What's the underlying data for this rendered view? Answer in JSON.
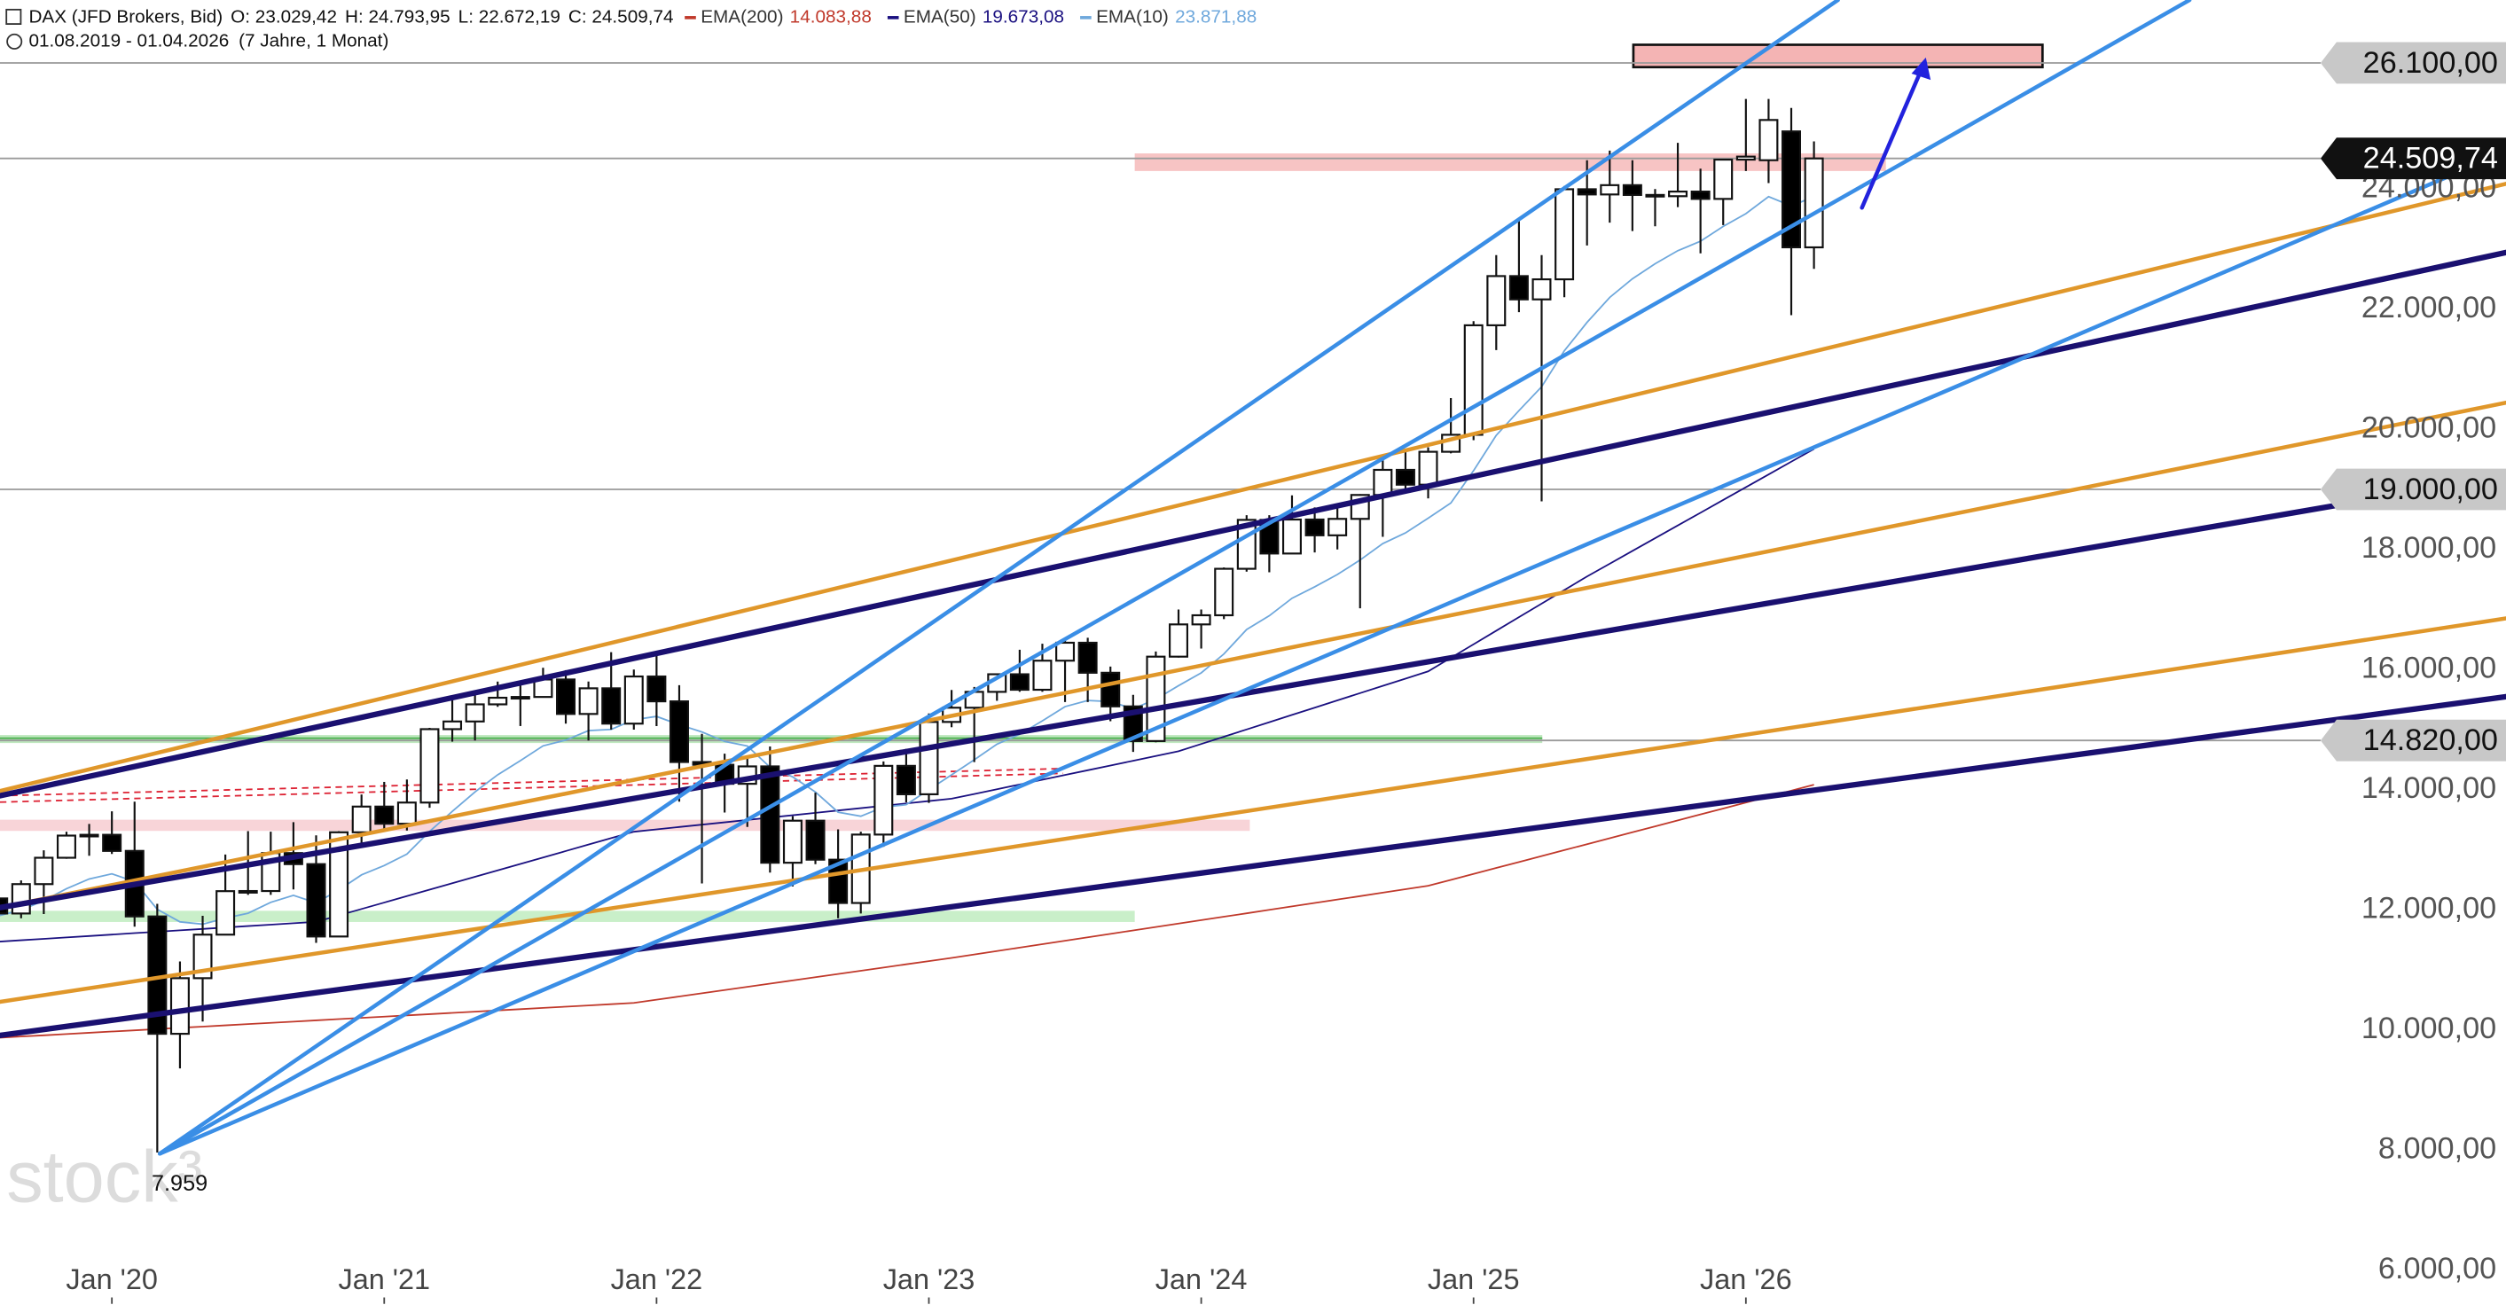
{
  "chart_data": {
    "type": "candlestick",
    "title": "DAX (JFD Brokers, Bid)",
    "ohlc_labels": [
      "O: 23.029,42",
      "H: 24.793,95",
      "L: 22.672,19",
      "C: 24.509,74"
    ],
    "date_range": "01.08.2019 - 01.04.2026",
    "period": "(7 Jahre, 1 Monat)",
    "watermark": "stock³",
    "categories": [
      null,
      null,
      null,
      null,
      null,
      "Jan '20",
      null,
      null,
      null,
      null,
      null,
      null,
      null,
      null,
      null,
      null,
      null,
      "Jan '21",
      null,
      null,
      null,
      null,
      null,
      null,
      null,
      null,
      null,
      null,
      null,
      "Jan '22",
      null,
      null,
      null,
      null,
      null,
      null,
      null,
      null,
      null,
      null,
      null,
      "Jan '23",
      null,
      null,
      null,
      null,
      null,
      null,
      null,
      null,
      null,
      null,
      null,
      "Jan '24",
      null,
      null,
      null,
      null,
      null,
      null,
      null,
      null,
      null,
      null,
      null,
      "Jan '25",
      null,
      null,
      null,
      null,
      null,
      null,
      null,
      null,
      null,
      null,
      null,
      "Jan '26",
      null,
      null,
      null
    ],
    "candles": [
      [
        12190,
        12200,
        11270,
        11939
      ],
      [
        11939,
        12490,
        11860,
        12428
      ],
      [
        12428,
        12990,
        11930,
        12867
      ],
      [
        12867,
        13300,
        12850,
        13236
      ],
      [
        13236,
        13430,
        12900,
        13249
      ],
      [
        13249,
        13640,
        12930,
        12981
      ],
      [
        12981,
        13800,
        11720,
        11890
      ],
      [
        11890,
        12100,
        7959,
        9936
      ],
      [
        9936,
        11140,
        9360,
        10862
      ],
      [
        10862,
        11900,
        10140,
        11587
      ],
      [
        11587,
        12920,
        11580,
        12311
      ],
      [
        12311,
        13310,
        12250,
        12313
      ],
      [
        12313,
        13300,
        12250,
        12945
      ],
      [
        12945,
        13460,
        12340,
        12761
      ],
      [
        12761,
        13240,
        11450,
        11556
      ],
      [
        11556,
        13310,
        11580,
        13291
      ],
      [
        13291,
        13920,
        13060,
        13719
      ],
      [
        13719,
        14130,
        13310,
        13433
      ],
      [
        13433,
        14170,
        13320,
        13786
      ],
      [
        13786,
        15030,
        13700,
        15008
      ],
      [
        15008,
        15500,
        14800,
        15136
      ],
      [
        15136,
        15570,
        14820,
        15421
      ],
      [
        15421,
        15800,
        15380,
        15531
      ],
      [
        15531,
        15810,
        15060,
        15544
      ],
      [
        15544,
        16030,
        15540,
        15835
      ],
      [
        15835,
        15990,
        15100,
        15261
      ],
      [
        15261,
        15800,
        14820,
        15688
      ],
      [
        15688,
        16290,
        15000,
        15100
      ],
      [
        15100,
        16000,
        15000,
        15885
      ],
      [
        15885,
        16290,
        15060,
        15471
      ],
      [
        15471,
        15740,
        13800,
        14461
      ],
      [
        14461,
        14930,
        12440,
        14415
      ],
      [
        14415,
        14600,
        13620,
        14098
      ],
      [
        14098,
        14560,
        13380,
        14388
      ],
      [
        14388,
        14720,
        12620,
        12784
      ],
      [
        12784,
        13560,
        12390,
        13484
      ],
      [
        13484,
        13950,
        12760,
        12835
      ],
      [
        12835,
        13340,
        11860,
        12114
      ],
      [
        12114,
        13300,
        11940,
        13253
      ],
      [
        13253,
        14470,
        13050,
        14397
      ],
      [
        14397,
        14680,
        13790,
        13924
      ],
      [
        13924,
        15270,
        13780,
        15128
      ],
      [
        15128,
        15660,
        15040,
        15365
      ],
      [
        15365,
        15710,
        14460,
        15629
      ],
      [
        15629,
        15900,
        15480,
        15922
      ],
      [
        15922,
        16330,
        15630,
        15664
      ],
      [
        15664,
        16430,
        15630,
        16148
      ],
      [
        16148,
        16530,
        15460,
        16447
      ],
      [
        16447,
        16530,
        15460,
        15947
      ],
      [
        15947,
        16050,
        15140,
        15387
      ],
      [
        15387,
        15580,
        14630,
        14810
      ],
      [
        14810,
        16300,
        14790,
        16215
      ],
      [
        16215,
        17000,
        16200,
        16752
      ],
      [
        16752,
        17000,
        16350,
        16904
      ],
      [
        16904,
        17700,
        16840,
        17678
      ],
      [
        17678,
        18570,
        17630,
        18492
      ],
      [
        18492,
        18570,
        17620,
        17932
      ],
      [
        17932,
        18900,
        17930,
        18498
      ],
      [
        18498,
        18700,
        17950,
        18235
      ],
      [
        18235,
        18690,
        18000,
        18509
      ],
      [
        18509,
        18920,
        17020,
        18907
      ],
      [
        18907,
        19490,
        18210,
        19325
      ],
      [
        19325,
        19670,
        19000,
        19078
      ],
      [
        19078,
        19700,
        18850,
        19626
      ],
      [
        19626,
        20520,
        19600,
        19909
      ],
      [
        19909,
        21800,
        19820,
        21732
      ],
      [
        21732,
        22900,
        21320,
        22551
      ],
      [
        22551,
        23480,
        21950,
        22163
      ],
      [
        22163,
        22900,
        18800,
        22497
      ],
      [
        22497,
        24050,
        22200,
        23997
      ],
      [
        23997,
        24480,
        23060,
        23910
      ],
      [
        23910,
        24640,
        23440,
        24065
      ],
      [
        24065,
        24480,
        23300,
        23902
      ],
      [
        23902,
        24000,
        23380,
        23881
      ],
      [
        23881,
        24770,
        23700,
        23958
      ],
      [
        23958,
        24340,
        22930,
        23836
      ],
      [
        23836,
        24500,
        23400,
        24490
      ],
      [
        24490,
        25500,
        24300,
        24540
      ],
      [
        24480,
        25500,
        24100,
        25150
      ],
      [
        24960,
        25350,
        21900,
        23030
      ],
      [
        23029.42,
        24793.95,
        22672.19,
        24509.74
      ]
    ],
    "series": [
      {
        "name": "EMA(200)",
        "color": "#c0392b",
        "value_label": "14.083,88",
        "values": [
          9870,
          9891,
          9911,
          9932,
          9953,
          9974,
          9994,
          10015,
          10036,
          10056,
          10077,
          10098,
          10118,
          10139,
          10160,
          10181,
          10201,
          10222,
          10243,
          10263,
          10284,
          10305,
          10326,
          10346,
          10367,
          10388,
          10408,
          10429,
          10450,
          10504,
          10557,
          10611,
          10664,
          10718,
          10771,
          10825,
          10879,
          10932,
          10986,
          11039,
          11093,
          11146,
          11200,
          11257,
          11314,
          11371,
          11428,
          11486,
          11543,
          11600,
          11657,
          11714,
          11771,
          11828,
          11885,
          11942,
          12000,
          12057,
          12114,
          12171,
          12228,
          12286,
          12343,
          12400,
          12499,
          12598,
          12697,
          12796,
          12895,
          12994,
          13093,
          13192,
          13291,
          13390,
          13489,
          13588,
          13687,
          13786,
          13885,
          13984,
          14083.88
        ]
      },
      {
        "name": "EMA(50)",
        "color": "#1a1080",
        "value_label": "19.673,08",
        "values": [
          11470,
          11494,
          11517,
          11541,
          11564,
          11588,
          11612,
          11635,
          11659,
          11682,
          11706,
          11730,
          11753,
          11777,
          11800,
          11907,
          12014,
          12121,
          12229,
          12336,
          12443,
          12550,
          12657,
          12764,
          12871,
          12979,
          13086,
          13193,
          13300,
          13339,
          13379,
          13418,
          13457,
          13496,
          13536,
          13575,
          13614,
          13654,
          13693,
          13732,
          13771,
          13811,
          13850,
          13929,
          14008,
          14087,
          14166,
          14245,
          14324,
          14403,
          14482,
          14561,
          14640,
          14761,
          14882,
          15003,
          15124,
          15245,
          15366,
          15487,
          15608,
          15729,
          15849,
          15970,
          16196,
          16421,
          16647,
          16873,
          17098,
          17324,
          17550,
          17762,
          17975,
          18187,
          18399,
          18611,
          18824,
          19036,
          19248,
          19461,
          19673.08
        ]
      },
      {
        "name": "EMA(10)",
        "color": "#6fa8dc",
        "value_label": "23.871,88",
        "values": [
          11900,
          11995,
          12154,
          12351,
          12514,
          12599,
          12470,
          12009,
          11800,
          11761,
          11861,
          11943,
          12125,
          12241,
          12116,
          12330,
          12582,
          12737,
          12928,
          13306,
          13639,
          13963,
          14248,
          14484,
          14730,
          14826,
          14983,
          15004,
          15164,
          15220,
          15082,
          14961,
          14804,
          14728,
          14375,
          14213,
          13962,
          13626,
          13558,
          13711,
          13750,
          14000,
          14248,
          14499,
          14758,
          14923,
          15146,
          15383,
          15485,
          15467,
          15348,
          15506,
          15732,
          15945,
          16260,
          16666,
          16896,
          17187,
          17378,
          17583,
          17824,
          18097,
          18275,
          18521,
          18773,
          19311,
          19900,
          20311,
          20709,
          21307,
          21780,
          22196,
          22506,
          22756,
          22974,
          23131,
          23378,
          23590,
          23874,
          23720,
          23871.88
        ]
      }
    ],
    "ylim": [
      5440,
      27147
    ],
    "yticks": [
      {
        "value": 6000,
        "label": "6.000,00"
      },
      {
        "value": 8000,
        "label": "8.000,00"
      },
      {
        "value": 10000,
        "label": "10.000,00"
      },
      {
        "value": 12000,
        "label": "12.000,00"
      },
      {
        "value": 14000,
        "label": "14.000,00"
      },
      {
        "value": 16000,
        "label": "16.000,00"
      },
      {
        "value": 18000,
        "label": "18.000,00"
      },
      {
        "value": 20000,
        "label": "20.000,00"
      },
      {
        "value": 22000,
        "label": "22.000,00"
      },
      {
        "value": 24000,
        "label": "24.000,00"
      }
    ],
    "levels": [
      {
        "value": 26100,
        "label": "26.100,00",
        "color": "#c8c8c8"
      },
      {
        "value": 24509.74,
        "label": "24.509,74",
        "color": "#111111"
      },
      {
        "value": 19000,
        "label": "19.000,00",
        "color": "#c8c8c8"
      },
      {
        "value": 14820,
        "label": "14.820,00",
        "color": "#c8c8c8"
      }
    ],
    "low_label": {
      "value": 7959,
      "label": "7.959"
    }
  }
}
